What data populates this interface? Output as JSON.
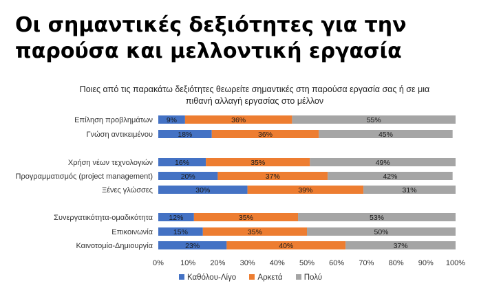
{
  "header": {
    "title_line1": "Οι σημαντικές δεξιότητες για την",
    "title_line2": "παρούσα και μελλοντική εργασία"
  },
  "chart_data": {
    "type": "bar",
    "orientation": "horizontal",
    "stacked": true,
    "title_line1": "Ποιες από τις παρακάτω δεξιότητες θεωρείτε σημαντικές στη παρούσα εργασία σας ή σε μια",
    "title_line2": "πιθανή αλλαγή εργασίας στο μέλλον",
    "categories": [
      "Επίληση προβλημάτων",
      "Γνώση αντικειμένου",
      "Χρήση νέων τεχνολογιών",
      "Προγραμματισμός (project management)",
      "Ξένες γλώσσες",
      "Συνεργατικότητα-ομαδικότητα",
      "Επικοινωνία",
      "Καινοτομία-Δημιουργία"
    ],
    "series": [
      {
        "name": "Καθόλου-Λίγο",
        "color": "#4472C4",
        "values": [
          9,
          18,
          16,
          20,
          30,
          12,
          15,
          23
        ]
      },
      {
        "name": "Αρκετά",
        "color": "#ED7D31",
        "values": [
          36,
          36,
          35,
          37,
          39,
          35,
          35,
          40
        ]
      },
      {
        "name": "Πολύ",
        "color": "#A5A5A5",
        "values": [
          55,
          45,
          49,
          42,
          31,
          53,
          50,
          37
        ]
      }
    ],
    "xlim": [
      0,
      100
    ],
    "xticks": [
      "0%",
      "10%",
      "20%",
      "30%",
      "40%",
      "50%",
      "60%",
      "70%",
      "80%",
      "90%",
      "100%"
    ],
    "value_suffix": "%",
    "legend": "bottom",
    "grid": false
  }
}
